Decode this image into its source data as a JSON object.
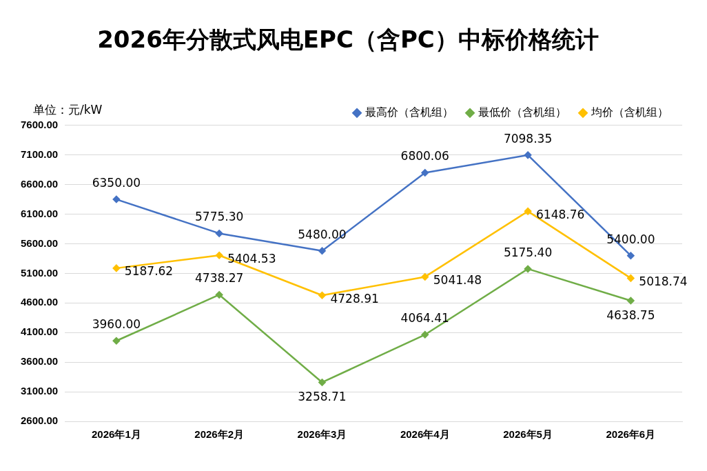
{
  "chart_data": {
    "type": "line",
    "title": "2026年分散式风电EPC（含PC）中标价格统计",
    "annotations": [
      "单位：元/kW"
    ],
    "categories": [
      "2026年1月",
      "2026年2月",
      "2026年3月",
      "2026年4月",
      "2026年5月",
      "2026年6月"
    ],
    "series": [
      {
        "name": "最高价（含机组）",
        "color": "#4472c4",
        "values": [
          6350.0,
          5775.3,
          5480.0,
          6800.06,
          7098.35,
          5400.0
        ],
        "value_labels": [
          "6350.00",
          "5775.30",
          "5480.00",
          "6800.06",
          "7098.35",
          "5400.00"
        ]
      },
      {
        "name": "最低价（含机组）",
        "color": "#70ad47",
        "values": [
          3960.0,
          4738.27,
          3258.71,
          4064.41,
          5175.4,
          4638.75
        ],
        "value_labels": [
          "3960.00",
          "4738.27",
          "3258.71",
          "4064.41",
          "5175.40",
          "4638.75"
        ]
      },
      {
        "name": "均价（含机组）",
        "color": "#ffc000",
        "values": [
          5187.62,
          5404.53,
          4728.91,
          5041.48,
          6148.76,
          5018.74
        ],
        "value_labels": [
          "5187.62",
          "5404.53",
          "4728.91",
          "5041.48",
          "6148.76",
          "5018.74"
        ]
      }
    ],
    "ylim": [
      2600,
      7600
    ],
    "yticks": [
      {
        "value": 2600,
        "label": "2600.00"
      },
      {
        "value": 3100,
        "label": "3100.00"
      },
      {
        "value": 3600,
        "label": "3600.00"
      },
      {
        "value": 4100,
        "label": "4100.00"
      },
      {
        "value": 4600,
        "label": "4600.00"
      },
      {
        "value": 5100,
        "label": "5100.00"
      },
      {
        "value": 5600,
        "label": "5600.00"
      },
      {
        "value": 6100,
        "label": "6100.00"
      },
      {
        "value": 6600,
        "label": "6600.00"
      },
      {
        "value": 7100,
        "label": "7100.00"
      },
      {
        "value": 7600,
        "label": "7600.00"
      }
    ],
    "grid": "y",
    "legend": "top right",
    "marker": "diamond",
    "line_style": "solid"
  }
}
